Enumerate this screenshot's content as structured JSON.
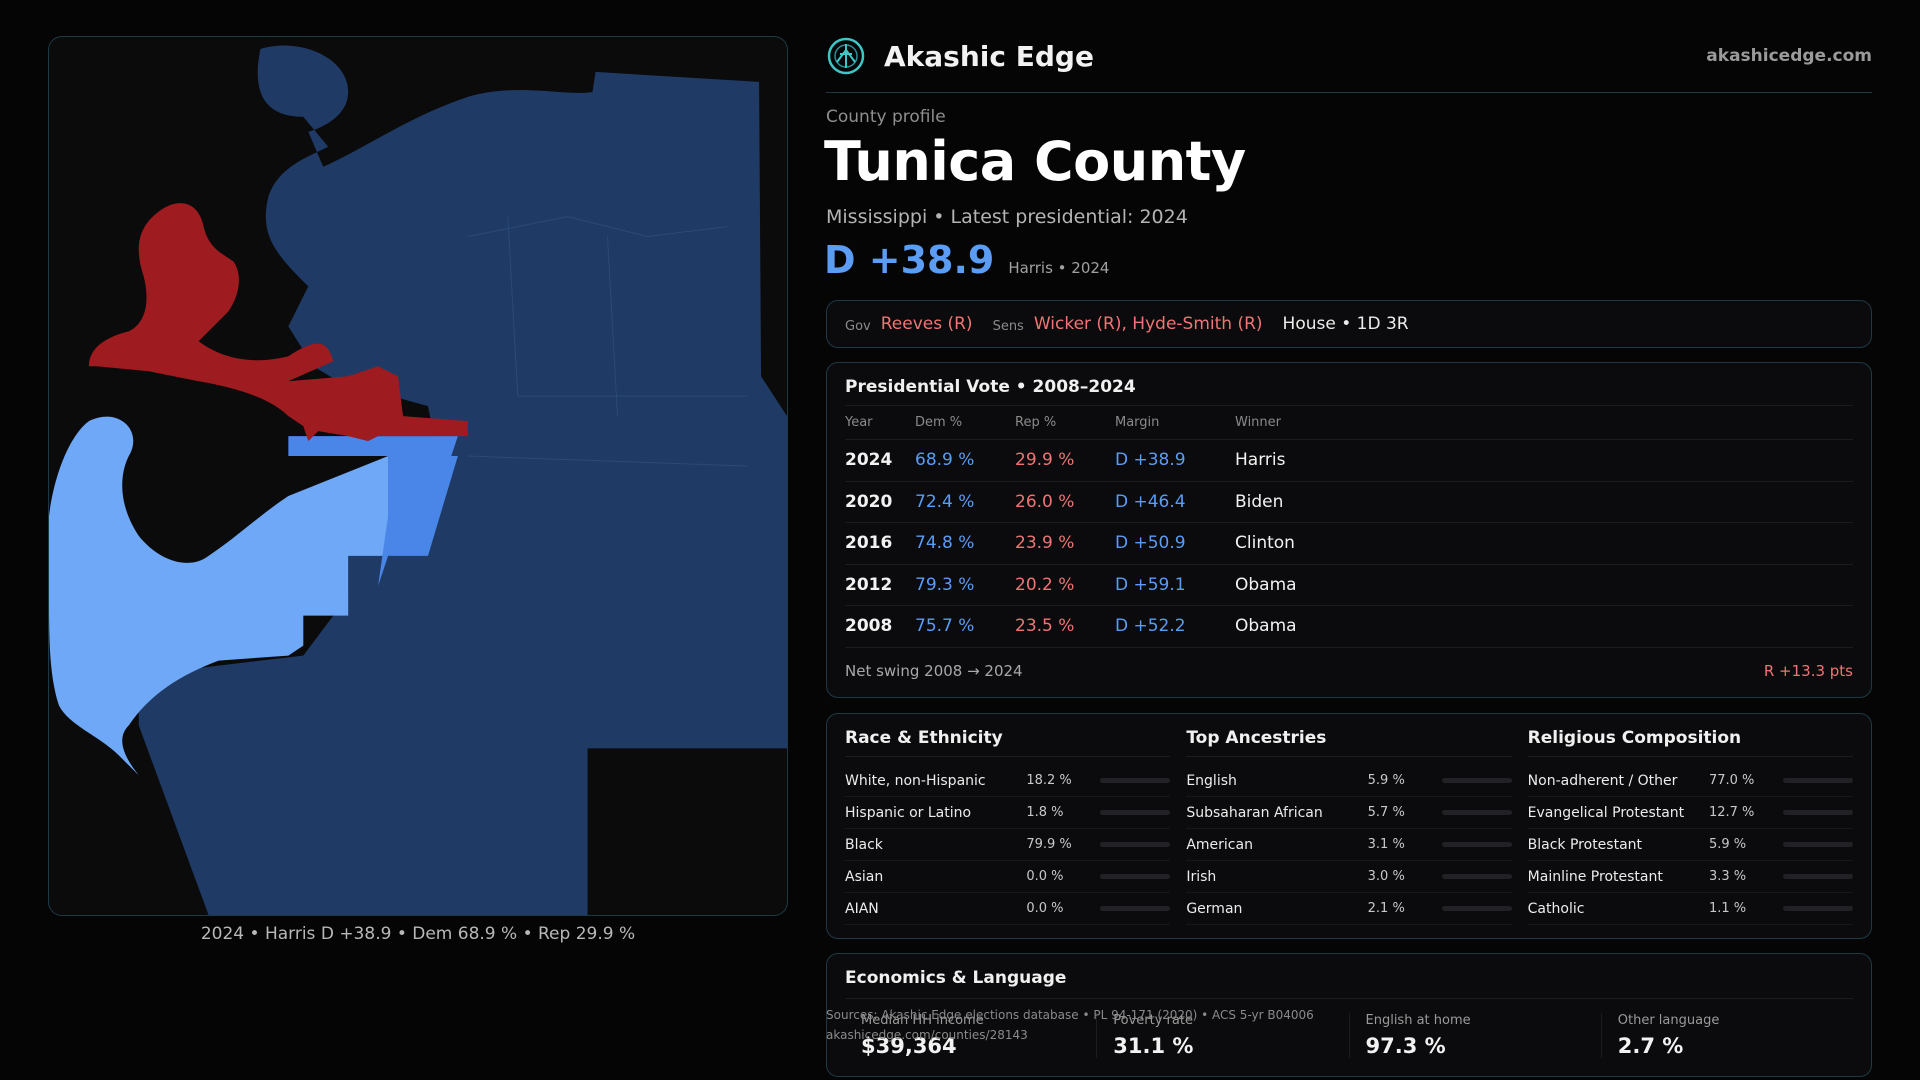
{
  "brand": {
    "name": "Akashic Edge",
    "url": "akashicedge.com"
  },
  "profile": {
    "kicker": "County profile",
    "title": "Tunica County",
    "subtitle": "Mississippi • Latest presidential: 2024",
    "margin": "D +38.9",
    "margin_note": "Harris • 2024"
  },
  "map": {
    "caption": "2024 • Harris D +38.9 • Dem 68.9 % • Rep 29.9 %",
    "colors": {
      "dem_dark": "#1f3a64",
      "dem_mid": "#4a86e8",
      "dem_light": "#6ea8f7",
      "rep": "#9e1c20"
    }
  },
  "officials": {
    "gov_label": "Gov",
    "gov": "Reeves (R)",
    "sens_label": "Sens",
    "sens": "Wicker (R), Hyde-Smith (R)",
    "house": "House • 1D 3R"
  },
  "presidential": {
    "title": "Presidential Vote • 2008–2024",
    "headers": [
      "Year",
      "Dem %",
      "Rep %",
      "Margin",
      "Winner"
    ],
    "rows": [
      {
        "year": "2024",
        "dem": "68.9 %",
        "rep": "29.9 %",
        "margin": "D +38.9",
        "winner": "Harris"
      },
      {
        "year": "2020",
        "dem": "72.4 %",
        "rep": "26.0 %",
        "margin": "D +46.4",
        "winner": "Biden"
      },
      {
        "year": "2016",
        "dem": "74.8 %",
        "rep": "23.9 %",
        "margin": "D +50.9",
        "winner": "Clinton"
      },
      {
        "year": "2012",
        "dem": "79.3 %",
        "rep": "20.2 %",
        "margin": "D +59.1",
        "winner": "Obama"
      },
      {
        "year": "2008",
        "dem": "75.7 %",
        "rep": "23.5 %",
        "margin": "D +52.2",
        "winner": "Obama"
      }
    ],
    "swing_label": "Net swing 2008 → 2024",
    "swing_value": "R +13.3 pts"
  },
  "race": {
    "title": "Race & Ethnicity",
    "rows": [
      {
        "label": "White, non-Hispanic",
        "value": "18.2 %",
        "pct": 18.2,
        "color": "#8a8f99"
      },
      {
        "label": "Hispanic or Latino",
        "value": "1.8 %",
        "pct": 1.8,
        "color": "#d08a3a"
      },
      {
        "label": "Black",
        "value": "79.9 %",
        "pct": 79.9,
        "color": "#a07ae6"
      },
      {
        "label": "Asian",
        "value": "0.0 %",
        "pct": 0.0,
        "color": "#5aa0a0"
      },
      {
        "label": "AIAN",
        "value": "0.0 %",
        "pct": 0.0,
        "color": "#5aa0a0"
      }
    ]
  },
  "ancestry": {
    "title": "Top Ancestries",
    "rows": [
      {
        "label": "English",
        "value": "5.9 %",
        "pct": 5.9,
        "color": "#8a8f99"
      },
      {
        "label": "Subsaharan African",
        "value": "5.7 %",
        "pct": 5.7,
        "color": "#a07ae6"
      },
      {
        "label": "American",
        "value": "3.1 %",
        "pct": 3.1,
        "color": "#8a8f99"
      },
      {
        "label": "Irish",
        "value": "3.0 %",
        "pct": 3.0,
        "color": "#8a8f99"
      },
      {
        "label": "German",
        "value": "2.1 %",
        "pct": 2.1,
        "color": "#8a8f99"
      }
    ]
  },
  "religion": {
    "title": "Religious Composition",
    "rows": [
      {
        "label": "Non-adherent / Other",
        "value": "77.0 %",
        "pct": 77.0,
        "color": "#8a8f99"
      },
      {
        "label": "Evangelical Protestant",
        "value": "12.7 %",
        "pct": 12.7,
        "color": "#e05a5a"
      },
      {
        "label": "Black Protestant",
        "value": "5.9 %",
        "pct": 5.9,
        "color": "#a07ae6"
      },
      {
        "label": "Mainline Protestant",
        "value": "3.3 %",
        "pct": 3.3,
        "color": "#5b9cf5"
      },
      {
        "label": "Catholic",
        "value": "1.1 %",
        "pct": 1.1,
        "color": "#d0a23a"
      }
    ]
  },
  "economics": {
    "title": "Economics & Language",
    "cells": [
      {
        "label": "Median HH income",
        "value": "$39,364"
      },
      {
        "label": "Poverty rate",
        "value": "31.1 %"
      },
      {
        "label": "English at home",
        "value": "97.3 %"
      },
      {
        "label": "Other language",
        "value": "2.7 %"
      }
    ]
  },
  "sources": {
    "line1": "Sources: Akashic Edge elections database • PL 94-171 (2020) • ACS 5-yr B04006",
    "line2": "akashicedge.com/counties/28143"
  }
}
